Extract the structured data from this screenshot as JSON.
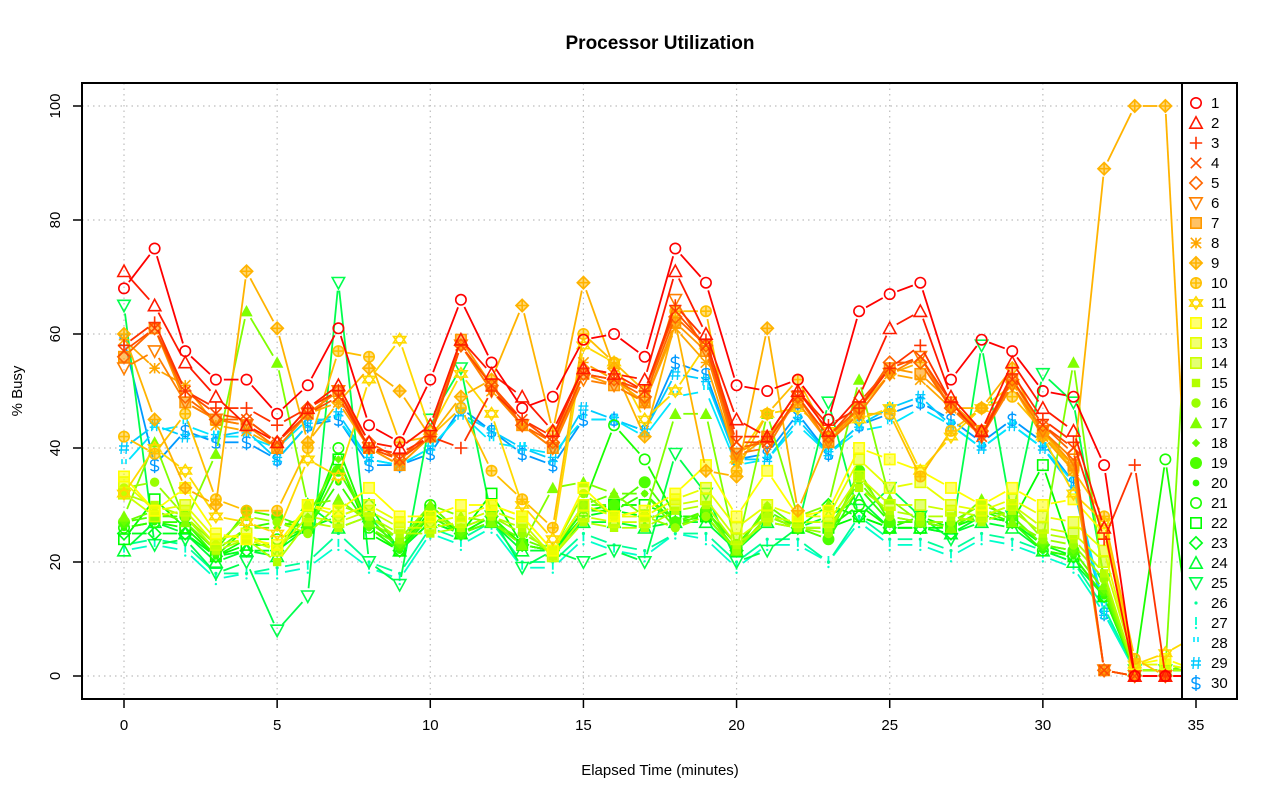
{
  "chart_data": {
    "type": "line",
    "title": "Processor Utilization",
    "xlabel": "Elapsed Time (minutes)",
    "ylabel": "% Busy",
    "xlim": [
      -1.4,
      36.4
    ],
    "ylim": [
      -4,
      104
    ],
    "xticks": [
      0,
      5,
      10,
      15,
      20,
      25,
      30,
      35
    ],
    "yticks": [
      0,
      20,
      40,
      60,
      80,
      100
    ],
    "grid": true,
    "legend_position": "right-inside",
    "x": [
      0,
      1,
      2,
      3,
      4,
      5,
      6,
      7,
      8,
      9,
      10,
      11,
      12,
      13,
      14,
      15,
      16,
      17,
      18,
      19,
      20,
      21,
      22,
      23,
      24,
      25,
      26,
      27,
      28,
      29,
      30,
      31,
      32,
      33,
      34,
      35
    ],
    "series": [
      {
        "name": "1",
        "color": "#ff0000",
        "symbol": "circle",
        "values": [
          68,
          75,
          57,
          52,
          52,
          46,
          51,
          61,
          44,
          41,
          52,
          66,
          55,
          47,
          49,
          59,
          60,
          56,
          75,
          69,
          51,
          50,
          52,
          45,
          64,
          67,
          69,
          52,
          59,
          57,
          50,
          49,
          37,
          0,
          0,
          0
        ]
      },
      {
        "name": "2",
        "color": "#ff1a00",
        "symbol": "triangle",
        "values": [
          71,
          65,
          55,
          49,
          44,
          41,
          47,
          51,
          41,
          40,
          44,
          59,
          53,
          49,
          43,
          54,
          53,
          52,
          71,
          60,
          45,
          42,
          50,
          43,
          49,
          61,
          64,
          49,
          43,
          55,
          47,
          43,
          26,
          0,
          0,
          0
        ]
      },
      {
        "name": "3",
        "color": "#ff3300",
        "symbol": "plus",
        "values": [
          58,
          62,
          50,
          47,
          47,
          44,
          47,
          50,
          40,
          39,
          42,
          40,
          50,
          45,
          42,
          54,
          53,
          50,
          65,
          59,
          42,
          42,
          50,
          44,
          47,
          54,
          58,
          48,
          42,
          53,
          45,
          41,
          24,
          37,
          0,
          0
        ]
      },
      {
        "name": "4",
        "color": "#ff4d00",
        "symbol": "cross",
        "values": [
          57,
          61,
          50,
          46,
          45,
          41,
          46,
          49,
          40,
          38,
          42,
          58,
          51,
          45,
          41,
          53,
          52,
          50,
          64,
          58,
          41,
          41,
          49,
          42,
          48,
          54,
          56,
          48,
          42,
          52,
          44,
          40,
          1,
          0,
          0,
          0
        ]
      },
      {
        "name": "5",
        "color": "#ff6600",
        "symbol": "diamond",
        "values": [
          56,
          61,
          49,
          45,
          45,
          41,
          47,
          50,
          41,
          38,
          43,
          58,
          51,
          44,
          41,
          53,
          52,
          49,
          63,
          58,
          40,
          41,
          49,
          42,
          47,
          55,
          55,
          47,
          43,
          52,
          44,
          39,
          1,
          0,
          0,
          0
        ]
      },
      {
        "name": "6",
        "color": "#ff8000",
        "symbol": "triangle-down",
        "values": [
          54,
          57,
          48,
          45,
          44,
          40,
          46,
          50,
          40,
          38,
          42,
          58,
          50,
          44,
          40,
          52,
          51,
          48,
          66,
          57,
          39,
          40,
          49,
          41,
          46,
          53,
          56,
          47,
          42,
          51,
          43,
          38,
          1,
          0,
          0,
          0
        ]
      },
      {
        "name": "7",
        "color": "#ff9900",
        "symbol": "square-cross",
        "values": [
          56,
          61,
          48,
          45,
          44,
          40,
          46,
          50,
          40,
          37,
          42,
          59,
          51,
          44,
          40,
          53,
          51,
          48,
          62,
          57,
          39,
          42,
          48,
          41,
          47,
          54,
          53,
          48,
          43,
          52,
          43,
          37,
          1,
          0,
          0,
          0
        ]
      },
      {
        "name": "8",
        "color": "#ffa600",
        "symbol": "asterisk",
        "values": [
          59,
          54,
          51,
          44,
          43,
          40,
          46,
          48,
          40,
          37,
          42,
          58,
          50,
          44,
          41,
          55,
          52,
          48,
          61,
          55,
          38,
          42,
          48,
          41,
          46,
          53,
          52,
          47,
          43,
          51,
          42,
          36,
          1,
          0,
          0,
          0
        ]
      },
      {
        "name": "9",
        "color": "#ffb300",
        "symbol": "diamond-plus",
        "values": [
          60,
          45,
          33,
          30,
          71,
          61,
          41,
          48,
          54,
          50,
          42,
          49,
          52,
          65,
          43,
          69,
          54,
          42,
          62,
          36,
          35,
          61,
          29,
          42,
          47,
          53,
          55,
          47,
          47,
          54,
          42,
          37,
          89,
          100,
          100,
          0
        ]
      },
      {
        "name": "10",
        "color": "#ffbf00",
        "symbol": "circle-plus",
        "values": [
          42,
          39,
          46,
          31,
          29,
          29,
          40,
          57,
          56,
          41,
          42,
          47,
          36,
          31,
          26,
          60,
          55,
          50,
          64,
          64,
          36,
          46,
          52,
          42,
          46,
          46,
          35,
          43,
          47,
          49,
          43,
          36,
          28,
          3,
          0,
          0
        ]
      },
      {
        "name": "11",
        "color": "#ffd900",
        "symbol": "star-of-david",
        "values": [
          32,
          40,
          36,
          28,
          27,
          25,
          38,
          35,
          52,
          59,
          43,
          53,
          46,
          30,
          24,
          58,
          55,
          45,
          50,
          58,
          38,
          46,
          47,
          43,
          45,
          47,
          36,
          42,
          47,
          51,
          42,
          32,
          27,
          2,
          4,
          7
        ]
      },
      {
        "name": "12",
        "color": "#ffff00",
        "symbol": "square-plus",
        "values": [
          35,
          29,
          33,
          25,
          24,
          23,
          30,
          29,
          33,
          28,
          28,
          30,
          30,
          28,
          22,
          33,
          28,
          29,
          32,
          37,
          28,
          36,
          28,
          29,
          40,
          38,
          36,
          33,
          30,
          33,
          30,
          31,
          25,
          2,
          3,
          1
        ]
      },
      {
        "name": "13",
        "color": "#e6ff00",
        "symbol": "square-x",
        "values": [
          34,
          29,
          30,
          24,
          25,
          22,
          30,
          28,
          30,
          27,
          27,
          28,
          30,
          28,
          22,
          30,
          28,
          28,
          31,
          33,
          26,
          30,
          28,
          28,
          38,
          33,
          34,
          30,
          29,
          31,
          28,
          27,
          22,
          2,
          2,
          1
        ]
      },
      {
        "name": "14",
        "color": "#ccff00",
        "symbol": "square-triangle",
        "values": [
          32,
          28,
          29,
          23,
          24,
          22,
          28,
          27,
          29,
          26,
          26,
          27,
          29,
          27,
          21,
          28,
          27,
          27,
          30,
          31,
          24,
          28,
          27,
          27,
          35,
          30,
          30,
          29,
          28,
          30,
          26,
          25,
          20,
          2,
          2,
          1
        ]
      },
      {
        "name": "15",
        "color": "#b3ff00",
        "symbol": "filled-square",
        "values": [
          32,
          30,
          28,
          22,
          24,
          20,
          27,
          26,
          28,
          25,
          25,
          26,
          28,
          26,
          21,
          27,
          26,
          26,
          29,
          30,
          23,
          27,
          26,
          26,
          33,
          29,
          28,
          28,
          27,
          29,
          25,
          24,
          18,
          1,
          1,
          1
        ]
      },
      {
        "name": "16",
        "color": "#99ff00",
        "symbol": "filled-circle",
        "values": [
          33,
          34,
          28,
          23,
          28,
          27,
          25,
          30,
          28,
          24,
          28,
          26,
          28,
          25,
          22,
          32,
          28,
          28,
          26,
          28,
          22,
          28,
          26,
          25,
          35,
          28,
          27,
          27,
          28,
          30,
          24,
          23,
          17,
          1,
          1,
          1
        ]
      },
      {
        "name": "17",
        "color": "#80ff00",
        "symbol": "filled-triangle",
        "values": [
          28,
          41,
          27,
          39,
          64,
          55,
          30,
          31,
          27,
          24,
          30,
          28,
          27,
          23,
          33,
          34,
          32,
          28,
          46,
          46,
          22,
          46,
          28,
          30,
          52,
          31,
          27,
          26,
          31,
          27,
          24,
          55,
          16,
          1,
          1,
          93
        ]
      },
      {
        "name": "18",
        "color": "#66ff00",
        "symbol": "filled-diamond",
        "values": [
          27,
          29,
          27,
          22,
          26,
          26,
          28,
          38,
          26,
          23,
          30,
          25,
          27,
          24,
          22,
          30,
          32,
          32,
          26,
          29,
          22,
          30,
          26,
          26,
          34,
          28,
          27,
          27,
          30,
          28,
          23,
          22,
          15,
          1,
          1,
          2
        ]
      },
      {
        "name": "19",
        "color": "#4dff00",
        "symbol": "big-filled-circle",
        "values": [
          27,
          28,
          28,
          22,
          29,
          28,
          26,
          36,
          27,
          23,
          28,
          25,
          27,
          23,
          22,
          30,
          30,
          34,
          27,
          29,
          23,
          29,
          26,
          24,
          36,
          27,
          27,
          26,
          29,
          28,
          23,
          22,
          15,
          1,
          1,
          1
        ]
      },
      {
        "name": "20",
        "color": "#33ff00",
        "symbol": "small-filled-circle",
        "values": [
          26,
          27,
          27,
          21,
          26,
          27,
          26,
          34,
          26,
          22,
          28,
          25,
          27,
          23,
          22,
          29,
          29,
          32,
          27,
          28,
          22,
          28,
          26,
          24,
          33,
          27,
          27,
          26,
          29,
          27,
          22,
          21,
          14,
          1,
          1,
          1
        ]
      },
      {
        "name": "21",
        "color": "#1aff00",
        "symbol": "circle",
        "values": [
          26,
          27,
          26,
          21,
          24,
          24,
          26,
          40,
          26,
          22,
          30,
          25,
          28,
          23,
          22,
          30,
          44,
          38,
          28,
          28,
          22,
          28,
          26,
          26,
          30,
          26,
          28,
          26,
          28,
          27,
          22,
          21,
          14,
          1,
          38,
          1
        ]
      },
      {
        "name": "22",
        "color": "#00ff00",
        "symbol": "square",
        "values": [
          24,
          31,
          26,
          21,
          23,
          23,
          26,
          38,
          25,
          22,
          29,
          25,
          32,
          23,
          22,
          29,
          30,
          30,
          28,
          28,
          22,
          28,
          26,
          26,
          28,
          26,
          26,
          26,
          28,
          27,
          37,
          21,
          14,
          1,
          1,
          1
        ]
      },
      {
        "name": "23",
        "color": "#00ff1a",
        "symbol": "diamond",
        "values": [
          25,
          25,
          25,
          21,
          22,
          22,
          26,
          28,
          30,
          22,
          27,
          25,
          28,
          23,
          22,
          28,
          29,
          28,
          28,
          28,
          22,
          28,
          26,
          30,
          28,
          26,
          26,
          25,
          28,
          27,
          23,
          21,
          14,
          1,
          1,
          1
        ]
      },
      {
        "name": "24",
        "color": "#00ff33",
        "symbol": "triangle",
        "values": [
          22,
          27,
          25,
          20,
          22,
          21,
          30,
          26,
          28,
          22,
          27,
          25,
          27,
          22,
          22,
          27,
          27,
          26,
          27,
          27,
          22,
          27,
          26,
          28,
          31,
          26,
          26,
          25,
          27,
          26,
          22,
          20,
          14,
          1,
          1,
          1
        ]
      },
      {
        "name": "25",
        "color": "#00ff4d",
        "symbol": "triangle-down",
        "values": [
          65,
          23,
          24,
          18,
          20,
          8,
          14,
          69,
          20,
          16,
          45,
          54,
          28,
          19,
          22,
          20,
          22,
          20,
          39,
          32,
          20,
          22,
          26,
          48,
          28,
          33,
          28,
          24,
          58,
          28,
          53,
          48,
          17,
          1,
          1,
          1
        ]
      },
      {
        "name": "26",
        "color": "#00ff99",
        "symbol": "char-space",
        "values": [
          23,
          24,
          23,
          18,
          18,
          19,
          20,
          25,
          20,
          18,
          26,
          24,
          27,
          20,
          20,
          25,
          23,
          22,
          25,
          25,
          20,
          24,
          24,
          20,
          28,
          24,
          24,
          22,
          25,
          24,
          22,
          20,
          12,
          1,
          1,
          1
        ]
      },
      {
        "name": "27",
        "color": "#00ffcc",
        "symbol": "char-!",
        "values": [
          22,
          23,
          22,
          17,
          18,
          18,
          19,
          23,
          19,
          17,
          25,
          23,
          26,
          19,
          19,
          24,
          22,
          21,
          25,
          24,
          19,
          23,
          23,
          20,
          27,
          23,
          23,
          21,
          24,
          23,
          21,
          19,
          11,
          1,
          1,
          1
        ]
      },
      {
        "name": "28",
        "color": "#00e6ff",
        "symbol": "char-quote",
        "values": [
          37,
          43,
          44,
          42,
          42,
          40,
          45,
          45,
          38,
          37,
          40,
          46,
          41,
          40,
          39,
          45,
          45,
          42,
          49,
          50,
          37,
          38,
          44,
          39,
          43,
          44,
          47,
          44,
          40,
          44,
          40,
          34,
          12,
          1,
          1,
          1
        ]
      },
      {
        "name": "29",
        "color": "#00ccff",
        "symbol": "char-#",
        "values": [
          40,
          44,
          42,
          42,
          43,
          38,
          44,
          46,
          38,
          37,
          40,
          46,
          43,
          40,
          38,
          47,
          45,
          43,
          53,
          52,
          38,
          38,
          45,
          39,
          44,
          47,
          49,
          44,
          40,
          44,
          40,
          33,
          11,
          1,
          1,
          1
        ]
      },
      {
        "name": "30",
        "color": "#0099ff",
        "symbol": "char-$",
        "values": [
          59,
          37,
          43,
          41,
          41,
          38,
          44,
          45,
          37,
          37,
          39,
          47,
          43,
          39,
          37,
          45,
          45,
          43,
          55,
          53,
          38,
          39,
          46,
          39,
          44,
          46,
          48,
          45,
          41,
          45,
          41,
          34,
          11,
          1,
          1,
          1
        ]
      }
    ]
  }
}
